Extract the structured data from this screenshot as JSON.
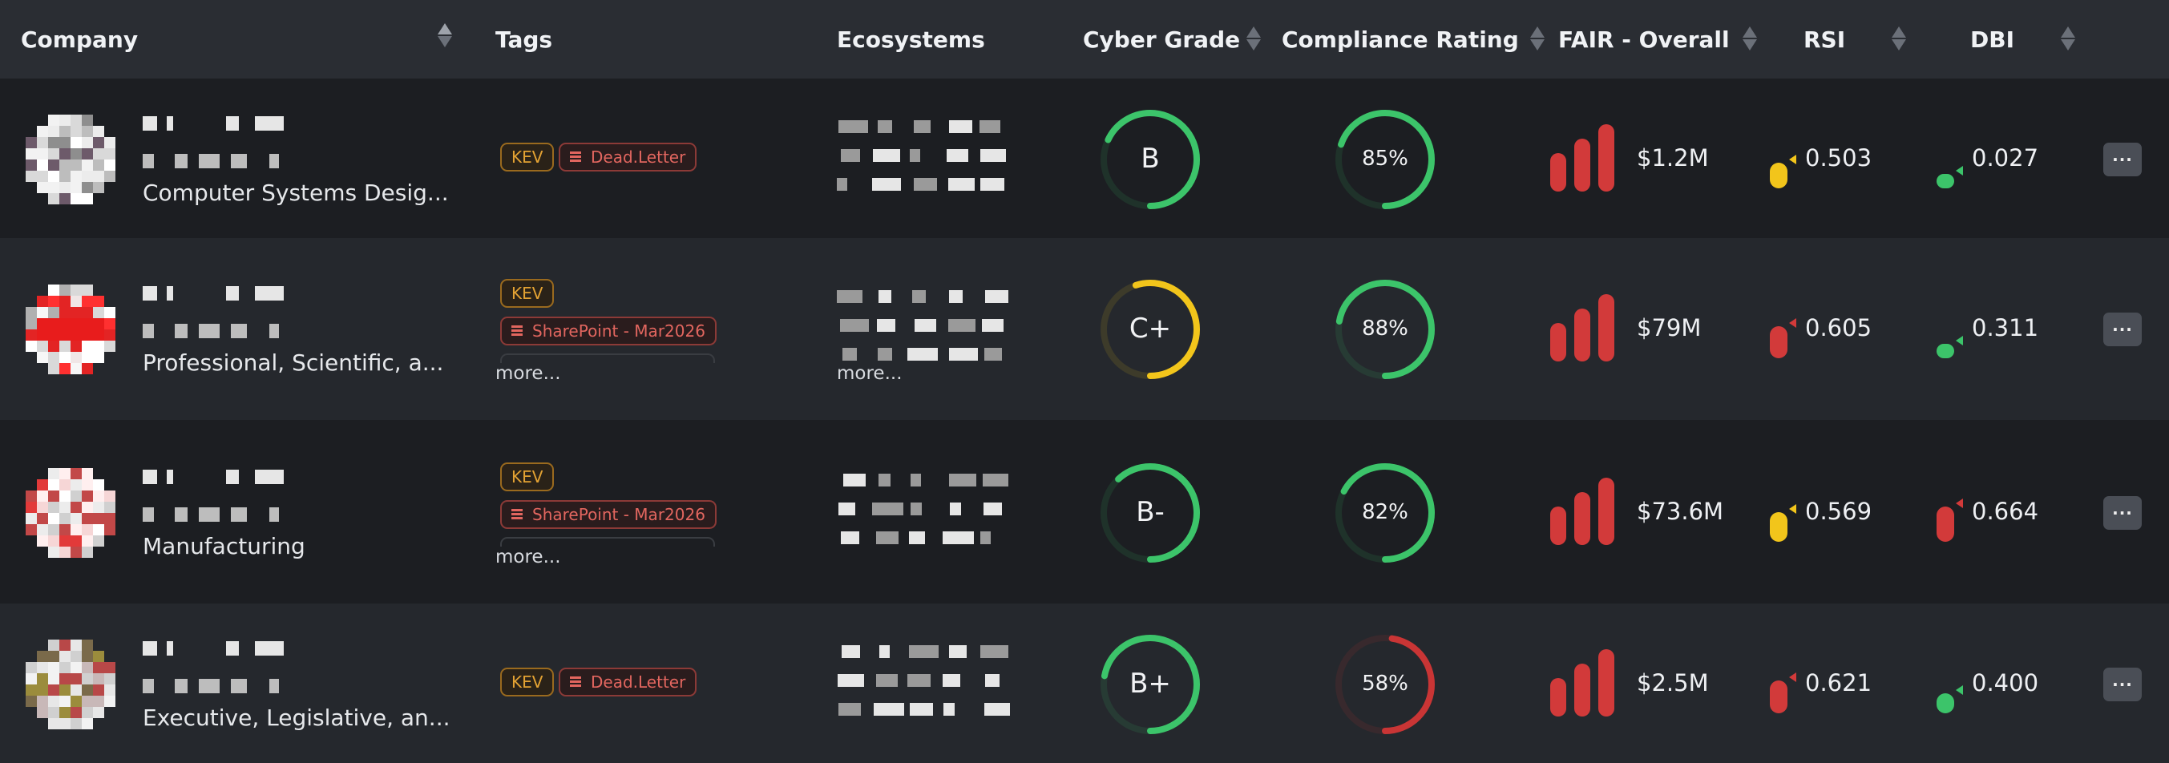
{
  "header": {
    "company": "Company",
    "tags": "Tags",
    "ecosystems": "Ecosystems",
    "cyber_grade": "Cyber Grade",
    "compliance_rating": "Compliance Rating",
    "fair_overall": "FAIR - Overall",
    "rsi": "RSI",
    "dbi": "DBI"
  },
  "more_label": "more...",
  "actions_icon": "ellipsis-icon",
  "colors": {
    "green": "#3cc46a",
    "yellow": "#f2c51b",
    "red": "#d23a3a"
  },
  "rows": [
    {
      "industry": "Computer Systems Desig...",
      "tags": [
        {
          "type": "kev",
          "label": "KEV"
        },
        {
          "type": "red",
          "label": "Dead.Letter"
        }
      ],
      "has_more_tags": false,
      "has_more_eco": false,
      "cyber_grade": "B",
      "cyber_grade_color": "#3cc46a",
      "compliance": "85%",
      "compliance_value": 0.85,
      "compliance_color": "#3cc46a",
      "fair": "$1.2M",
      "rsi": "0.503",
      "rsi_value": 0.503,
      "rsi_color": "#f2c51b",
      "dbi": "0.027",
      "dbi_value": 0.027,
      "dbi_color": "#3cc46a"
    },
    {
      "industry": "Professional, Scientific, a...",
      "tags": [
        {
          "type": "kev",
          "label": "KEV"
        },
        {
          "type": "red",
          "label": "SharePoint - Mar2026"
        }
      ],
      "has_more_tags": true,
      "has_more_eco": true,
      "cyber_grade": "C+",
      "cyber_grade_color": "#f2c51b",
      "compliance": "88%",
      "compliance_value": 0.88,
      "compliance_color": "#3cc46a",
      "fair": "$79M",
      "rsi": "0.605",
      "rsi_value": 0.605,
      "rsi_color": "#d23a3a",
      "dbi": "0.311",
      "dbi_value": 0.311,
      "dbi_color": "#3cc46a"
    },
    {
      "industry": "Manufacturing",
      "tags": [
        {
          "type": "kev",
          "label": "KEV"
        },
        {
          "type": "red",
          "label": "SharePoint - Mar2026"
        }
      ],
      "has_more_tags": true,
      "has_more_eco": false,
      "cyber_grade": "B-",
      "cyber_grade_color": "#3cc46a",
      "compliance": "82%",
      "compliance_value": 0.82,
      "compliance_color": "#3cc46a",
      "fair": "$73.6M",
      "rsi": "0.569",
      "rsi_value": 0.569,
      "rsi_color": "#f2c51b",
      "dbi": "0.664",
      "dbi_value": 0.664,
      "dbi_color": "#d23a3a"
    },
    {
      "industry": "Executive, Legislative, an...",
      "tags": [
        {
          "type": "kev",
          "label": "KEV"
        },
        {
          "type": "red",
          "label": "Dead.Letter"
        }
      ],
      "has_more_tags": false,
      "has_more_eco": false,
      "cyber_grade": "B+",
      "cyber_grade_color": "#3cc46a",
      "compliance": "58%",
      "compliance_value": 0.58,
      "compliance_color": "#c93535",
      "fair": "$2.5M",
      "rsi": "0.621",
      "rsi_value": 0.621,
      "rsi_color": "#d23a3a",
      "dbi": "0.400",
      "dbi_value": 0.4,
      "dbi_color": "#3cc46a"
    }
  ]
}
